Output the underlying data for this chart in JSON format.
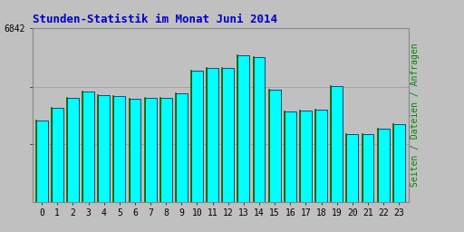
{
  "title": "Stunden-Statistik im Monat Juni 2014",
  "title_color": "#0000cc",
  "title_fontsize": 9,
  "ylabel_right": "Seiten / Dateien / Anfragen",
  "ylabel_right_color": "#008800",
  "background_color": "#c0c0c0",
  "plot_bg_color": "#c0c0c0",
  "bar_fill_color": "#00ffff",
  "bar_edge_left_color": "#006600",
  "bar_edge_right_color": "#000080",
  "categories": [
    0,
    1,
    2,
    3,
    4,
    5,
    6,
    7,
    8,
    9,
    10,
    11,
    12,
    13,
    14,
    15,
    16,
    17,
    18,
    19,
    20,
    21,
    22,
    23
  ],
  "values": [
    3200,
    3700,
    4100,
    4350,
    4200,
    4150,
    4050,
    4100,
    4100,
    4250,
    5150,
    5250,
    5250,
    5750,
    5700,
    4400,
    3550,
    3580,
    3620,
    4550,
    2650,
    2660,
    2870,
    3050
  ],
  "ymax": 6842,
  "ytick_label": "6842",
  "font_family": "monospace",
  "tick_fontsize": 7,
  "bar_width": 0.75
}
